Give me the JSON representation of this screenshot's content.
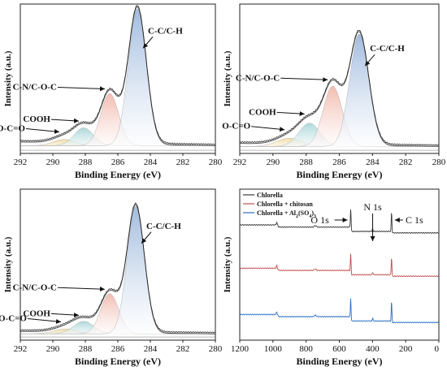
{
  "colors": {
    "envelope": "#555555",
    "frame": "#222222",
    "cc_fill": "#9db8dd",
    "cn_fill": "#f2b9ad",
    "cooh_fill": "#a9d6d8",
    "oco_fill": "#f2dca2",
    "survey_chlorella": "#3a3a3a",
    "survey_chitosan": "#c0504d",
    "survey_al": "#2e6fc4"
  },
  "chart_data": [
    {
      "type": "area",
      "panel": "top-left",
      "xlabel": "Binding Energy (eV)",
      "ylabel": "Intensity (a.u.)",
      "xlim": [
        292,
        280
      ],
      "x_ticks": [
        292,
        290,
        288,
        286,
        284,
        282,
        280
      ],
      "grid": false,
      "baseline": 0.06,
      "series": [
        {
          "name": "C-C/C-H",
          "center": 284.8,
          "height": 1.0,
          "fwhm": 1.3
        },
        {
          "name": "C-N/C-O-C",
          "center": 286.5,
          "height": 0.38,
          "fwhm": 1.3
        },
        {
          "name": "COOH",
          "center": 288.1,
          "height": 0.13,
          "fwhm": 1.4
        },
        {
          "name": "O-C=O",
          "center": 289.3,
          "height": 0.045,
          "fwhm": 1.6
        }
      ],
      "annotations": [
        "C-C/C-H",
        "C-N/C-O-C",
        "COOH",
        "O-C=O"
      ]
    },
    {
      "type": "area",
      "panel": "top-right",
      "xlabel": "Binding Energy (eV)",
      "ylabel": "Intensity (a.u.)",
      "xlim": [
        292,
        280
      ],
      "x_ticks": [
        292,
        290,
        288,
        286,
        284,
        282,
        280
      ],
      "grid": false,
      "baseline": 0.05,
      "series": [
        {
          "name": "C-C/C-H",
          "center": 284.8,
          "height": 0.82,
          "fwhm": 1.35
        },
        {
          "name": "C-N/C-O-C",
          "center": 286.4,
          "height": 0.44,
          "fwhm": 1.35
        },
        {
          "name": "COOH",
          "center": 287.8,
          "height": 0.17,
          "fwhm": 1.5
        },
        {
          "name": "O-C=O",
          "center": 289.0,
          "height": 0.06,
          "fwhm": 1.8
        }
      ],
      "annotations": [
        "C-C/C-H",
        "C-N/C-O-C",
        "COOH",
        "O-C=O"
      ]
    },
    {
      "type": "area",
      "panel": "bottom-left",
      "xlabel": "Binding Energy (eV)",
      "ylabel": "Intensity (a.u.)",
      "xlim": [
        292,
        280
      ],
      "x_ticks": [
        292,
        290,
        288,
        286,
        284,
        282,
        280
      ],
      "grid": false,
      "baseline": 0.04,
      "series": [
        {
          "name": "C-C/C-H",
          "center": 284.9,
          "height": 0.92,
          "fwhm": 1.25
        },
        {
          "name": "C-N/C-O-C",
          "center": 286.5,
          "height": 0.29,
          "fwhm": 1.3
        },
        {
          "name": "COOH",
          "center": 288.1,
          "height": 0.09,
          "fwhm": 1.5
        },
        {
          "name": "O-C=O",
          "center": 289.2,
          "height": 0.035,
          "fwhm": 1.7
        }
      ],
      "annotations": [
        "C-C/C-H",
        "C-N/C-O-C",
        "COOH",
        "O-C=O"
      ]
    },
    {
      "type": "line",
      "panel": "bottom-right",
      "xlabel": "Binding Energy (eV)",
      "ylabel": "Intensity (a.u.)",
      "xlim": [
        1200,
        0
      ],
      "x_ticks": [
        1200,
        1000,
        800,
        600,
        400,
        200,
        0
      ],
      "grid": false,
      "legend": "top-left",
      "series": [
        {
          "name": "Chlorella",
          "offset": 0.72
        },
        {
          "name": "Chlorella + chitosan",
          "offset": 0.42
        },
        {
          "name": "Chlorella + Al2(SO4)3",
          "offset": 0.1
        }
      ],
      "legend_labels": {
        "chlorella": "Chlorella",
        "chitosan": "Chlorella + chitosan",
        "al_prefix": "Chlorella + Al",
        "al_sub1": "2",
        "al_mid": "(SO",
        "al_sub2": "4",
        "al_end": ")",
        "al_sub3": "3"
      },
      "peaks": [
        {
          "label": "O 1s",
          "energy": 531
        },
        {
          "label": "N 1s",
          "energy": 399
        },
        {
          "label": "C 1s",
          "energy": 285
        }
      ]
    }
  ]
}
